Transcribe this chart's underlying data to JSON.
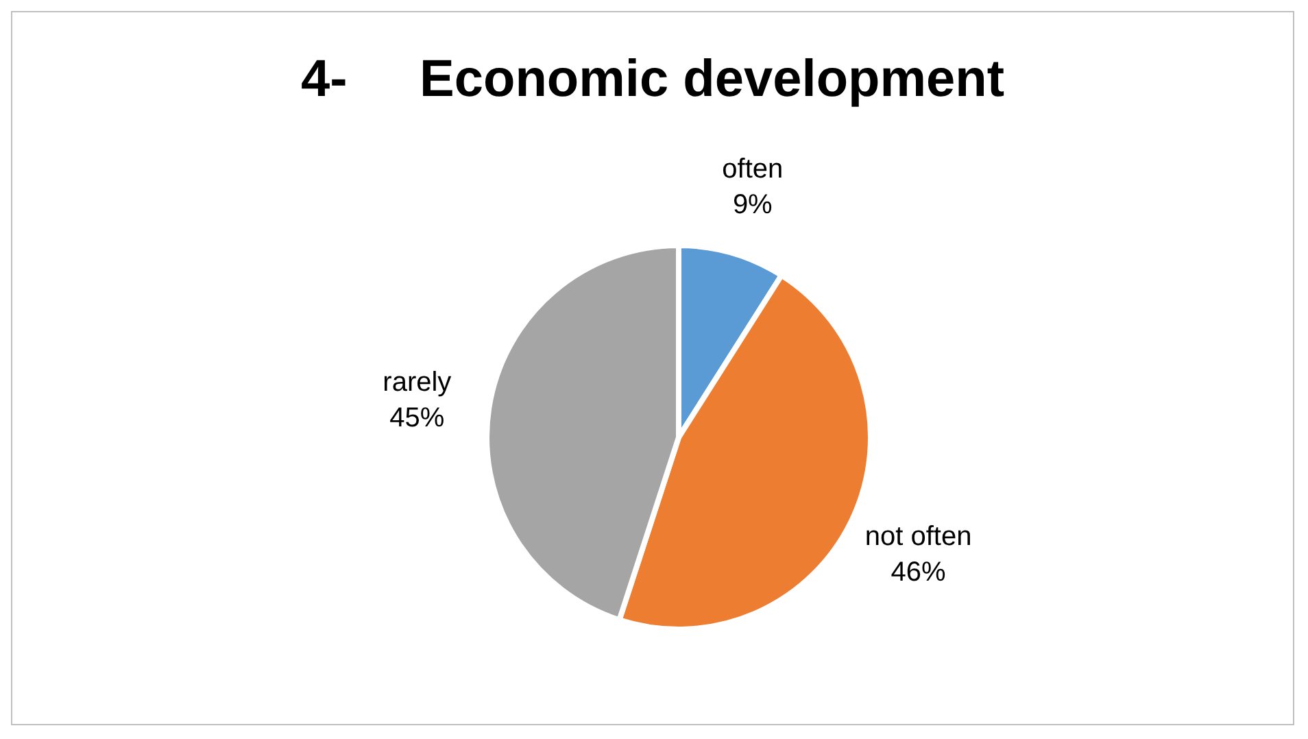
{
  "chart_data": {
    "type": "pie",
    "title": "4-     Economic development",
    "categories": [
      "often",
      "not often",
      "rarely"
    ],
    "values": [
      9,
      46,
      45
    ],
    "colors": [
      "#5b9bd5",
      "#ed7d31",
      "#a5a5a5"
    ],
    "value_labels": [
      "9%",
      "46%",
      "45%"
    ]
  }
}
